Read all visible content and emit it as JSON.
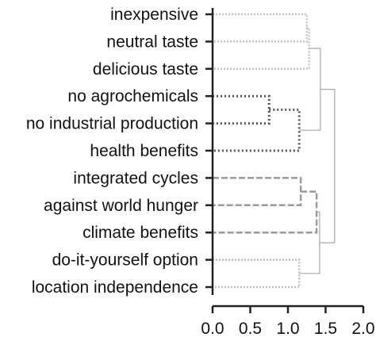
{
  "chart_data": {
    "type": "dendrogram",
    "title": "",
    "xlabel": "",
    "ylabel": "",
    "xlim": [
      0.0,
      2.0
    ],
    "x_ticks": [
      "0.0",
      "0.5",
      "1.0",
      "1.5",
      "2.0"
    ],
    "leaves": [
      "inexpensive",
      "neutral taste",
      "delicious taste",
      "no agrochemicals",
      "no industrial production",
      "health benefits",
      "integrated cycles",
      "against world hunger",
      "climate benefits",
      "do-it-yourself option",
      "location independence"
    ],
    "merges": [
      {
        "a": "L0",
        "b": "L1",
        "height": 1.25,
        "cluster": "taste"
      },
      {
        "a": "M0",
        "b": "L2",
        "height": 1.28,
        "cluster": "taste"
      },
      {
        "a": "L3",
        "b": "L4",
        "height": 0.75,
        "cluster": "health"
      },
      {
        "a": "M2",
        "b": "L5",
        "height": 1.15,
        "cluster": "health"
      },
      {
        "a": "L6",
        "b": "L7",
        "height": 1.17,
        "cluster": "global"
      },
      {
        "a": "M4",
        "b": "L8",
        "height": 1.38,
        "cluster": "global"
      },
      {
        "a": "L9",
        "b": "L10",
        "height": 1.15,
        "cluster": "location"
      },
      {
        "a": "M5",
        "b": "M6",
        "height": 1.42,
        "cluster": "top"
      },
      {
        "a": "M1",
        "b": "M3",
        "height": 1.43,
        "cluster": "top"
      },
      {
        "a": "M8",
        "b": "M7",
        "height": 1.62,
        "cluster": "top"
      }
    ],
    "cluster_styles": {
      "taste": {
        "color": "#c4c4c4",
        "dash": "2 2",
        "width": 2.5
      },
      "health": {
        "color": "#555555",
        "dash": "2 3",
        "width": 3
      },
      "global": {
        "color": "#9a9a9a",
        "dash": "8 3",
        "width": 2.5
      },
      "location": {
        "color": "#bdbdbd",
        "dash": "2 2",
        "width": 2.5
      },
      "top": {
        "color": "#a8a8a8",
        "dash": "",
        "width": 1.2
      }
    },
    "axis_color": "#222222"
  }
}
